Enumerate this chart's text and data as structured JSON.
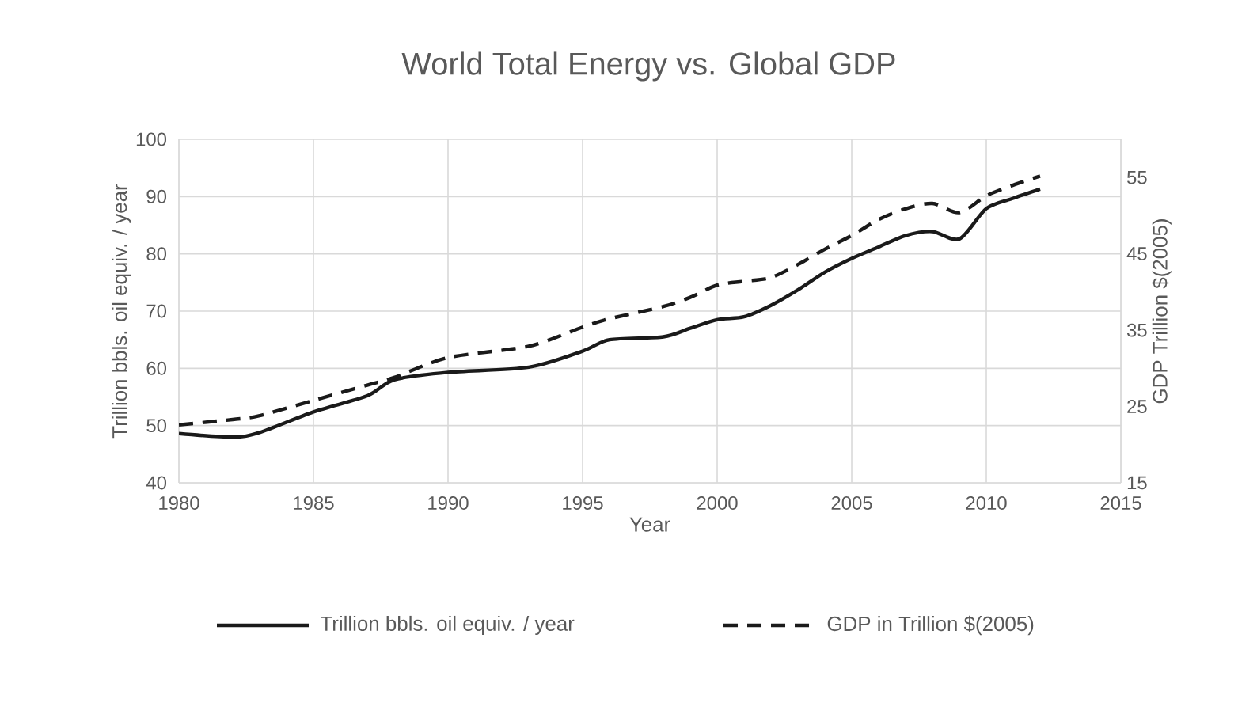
{
  "chart_data": {
    "type": "line",
    "title": "World Total Energy vs. Global GDP",
    "xlabel": "Year",
    "ylabel": "Trillion bbls. oil equiv. / year",
    "y2label": "GDP Trillion $(2005)",
    "x": [
      1980,
      1982,
      1983,
      1985,
      1987,
      1988,
      1990,
      1993,
      1995,
      1996,
      1998,
      1999,
      2000,
      2001,
      2002,
      2003,
      2004,
      2005,
      2006,
      2007,
      2008,
      2009,
      2010,
      2011,
      2012
    ],
    "series": [
      {
        "name": "Trillion bbls. oil equiv. / year",
        "color": "#1a1a1a",
        "line_style": "solid",
        "axis": "y",
        "values": [
          48.6,
          48,
          48.8,
          52.4,
          55.2,
          58,
          59.3,
          60.2,
          63,
          65,
          65.5,
          67,
          68.5,
          69,
          71,
          73.7,
          76.8,
          79.2,
          81.2,
          83.2,
          83.9,
          82.6,
          87.9,
          89.7,
          91.3
        ]
      },
      {
        "name": "GDP in Trillion $(2005)",
        "color": "#1a1a1a",
        "line_style": "dashed",
        "axis": "y2",
        "values": [
          22.6,
          23.3,
          23.8,
          25.8,
          27.8,
          28.8,
          31.4,
          32.9,
          35.4,
          36.5,
          38.1,
          39.3,
          40.9,
          41.4,
          41.9,
          43.6,
          45.6,
          47.4,
          49.5,
          50.9,
          51.6,
          50.4,
          52.6,
          54,
          55.2
        ]
      }
    ],
    "xlim": [
      1980,
      2015
    ],
    "xticks": [
      1980,
      1985,
      1990,
      1995,
      2000,
      2005,
      2010,
      2015
    ],
    "ylim": [
      40,
      100
    ],
    "yticks": [
      40,
      50,
      60,
      70,
      80,
      90,
      100
    ],
    "y2lim": [
      15,
      60
    ],
    "y2ticks": [
      15,
      25,
      35,
      45,
      55
    ],
    "grid": true,
    "legend": "bottom",
    "marker": "none"
  }
}
